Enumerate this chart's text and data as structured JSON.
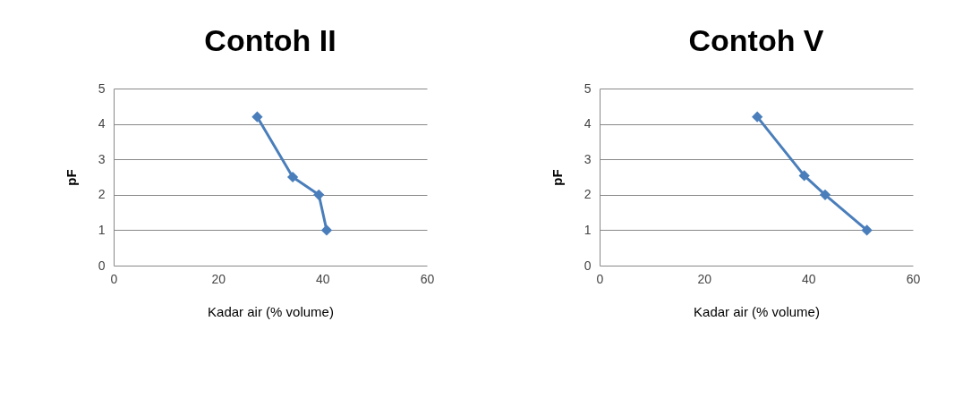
{
  "chart_data": [
    {
      "type": "line",
      "title": "Contoh II",
      "xlabel": "Kadar air (% volume)",
      "ylabel": "pF",
      "x": [
        27.5,
        34.3,
        39.3,
        40.8
      ],
      "series": [
        {
          "color": "#4a7ebb",
          "values": [
            4.2,
            2.5,
            2.0,
            1.0
          ]
        }
      ],
      "xlim": [
        0,
        60
      ],
      "xticks": [
        0,
        20,
        40,
        60
      ],
      "ylim": [
        0,
        5
      ],
      "yticks": [
        0,
        1,
        2,
        3,
        4,
        5
      ],
      "grid": "y",
      "marker": "diamond",
      "line_style": "solid"
    },
    {
      "type": "line",
      "title": "Contoh V",
      "xlabel": "Kadar air (% volume)",
      "ylabel": "pF",
      "x": [
        30.2,
        39.2,
        43.2,
        51.2
      ],
      "series": [
        {
          "color": "#4a7ebb",
          "values": [
            4.2,
            2.54,
            2.0,
            1.0
          ]
        }
      ],
      "xlim": [
        0,
        60
      ],
      "xticks": [
        0,
        20,
        40,
        60
      ],
      "ylim": [
        0,
        5
      ],
      "yticks": [
        0,
        1,
        2,
        3,
        4,
        5
      ],
      "grid": "y",
      "marker": "diamond",
      "line_style": "solid"
    }
  ]
}
